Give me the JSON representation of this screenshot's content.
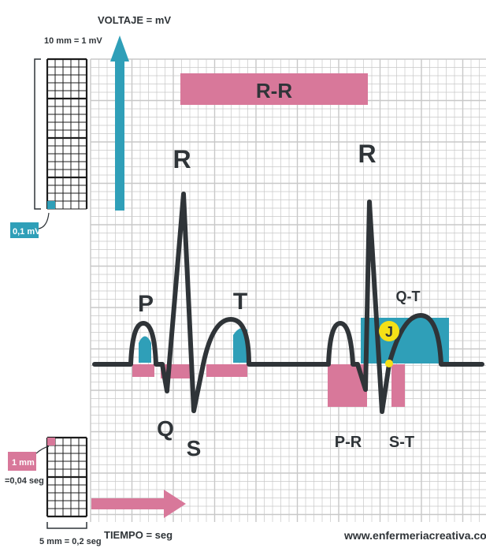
{
  "header": {
    "voltage_axis": "VOLTAJE = mV",
    "time_axis": "TIEMPO = seg",
    "website": "www.enfermeriacreativa.com"
  },
  "scale": {
    "top_box": "10 mm = 1 mV",
    "small_box_voltage": "0,1 mV",
    "small_box_time_mm": "1 mm",
    "small_box_time_seg": "=0,04 seg",
    "bottom_box": "5 mm = 0,2 seg"
  },
  "waves": {
    "p": "P",
    "q": "Q",
    "r1": "R",
    "s": "S",
    "t": "T",
    "r2": "R",
    "j": "J"
  },
  "intervals": {
    "rr": "R-R",
    "pr": "P-R",
    "st": "S-T",
    "qt": "Q-T"
  },
  "colors": {
    "grid": "#c8c8c8",
    "trace": "#2f3438",
    "pink": "#d8789a",
    "teal": "#2f9fb8",
    "yellow": "#f5e017"
  }
}
